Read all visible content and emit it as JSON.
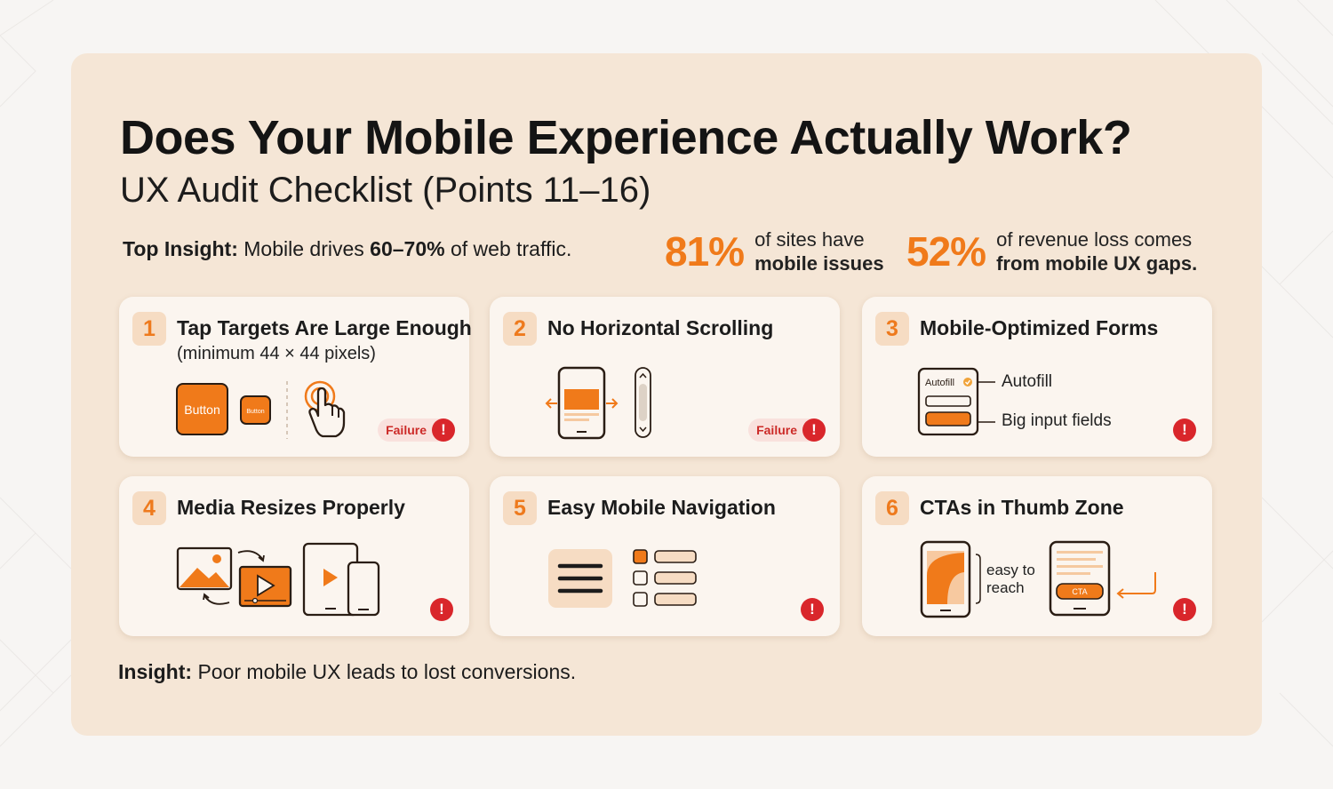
{
  "title": "Does Your Mobile Experience Actually Work?",
  "subtitle": "UX Audit Checklist (Points 11–16)",
  "top_insight": {
    "label": "Top Insight:",
    "text_before": "Mobile drives",
    "highlight": "60–70%",
    "text_after": "of web traffic."
  },
  "stats": [
    {
      "value": "81%",
      "line1": "of sites have",
      "line2": "mobile issues"
    },
    {
      "value": "52%",
      "line1": "of revenue loss comes",
      "line2": "from mobile UX gaps."
    }
  ],
  "cards": [
    {
      "number": "1",
      "title": "Tap Targets Are Large Enough",
      "subtitle": "(minimum 44 × 44 pixels)",
      "button_large": "Button",
      "button_small": "Button",
      "status": "Failure",
      "alert": "!"
    },
    {
      "number": "2",
      "title": "No Horizontal Scrolling",
      "status": "Failure",
      "alert": "!"
    },
    {
      "number": "3",
      "title": "Mobile-Optimized Forms",
      "form_autofill_chip": "Autofill",
      "label_autofill": "Autofill",
      "label_inputs": "Big input fields",
      "alert": "!"
    },
    {
      "number": "4",
      "title": "Media Resizes Properly",
      "alert": "!"
    },
    {
      "number": "5",
      "title": "Easy Mobile Navigation",
      "alert": "!"
    },
    {
      "number": "6",
      "title": "CTAs in Thumb Zone",
      "label_line1": "easy to",
      "label_line2": "reach",
      "cta_label": "CTA",
      "alert": "!"
    }
  ],
  "bottom_insight": {
    "label": "Insight:",
    "text": "Poor mobile UX leads to lost conversions."
  },
  "colors": {
    "accent": "#f07a1a",
    "panel": "#f5e6d6",
    "card": "#fbf5ef",
    "alert": "#d9262b"
  }
}
